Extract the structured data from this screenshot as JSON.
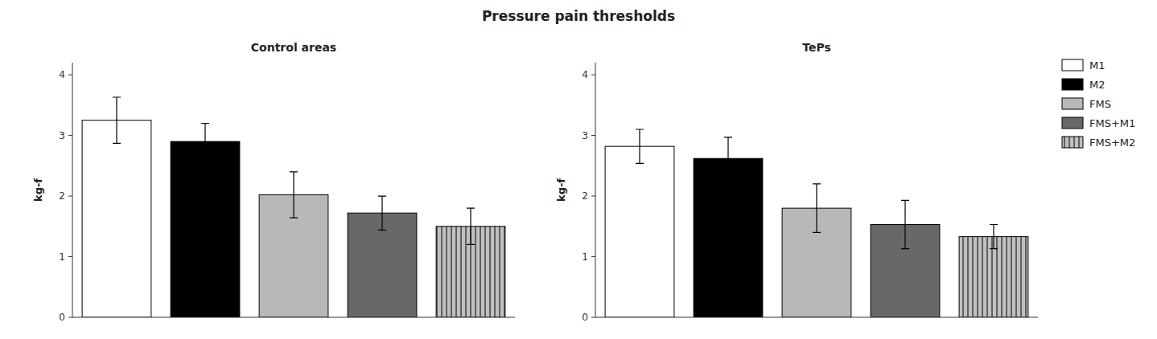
{
  "chart_data": [
    {
      "type": "bar",
      "title": "Pressure pain thresholds",
      "subtitle": "Control areas",
      "y_label": "kg-f",
      "categories": [
        "M1",
        "M2",
        "FMS",
        "FMS+M1",
        "FMS+M2"
      ],
      "values": [
        3.25,
        2.9,
        2.02,
        1.72,
        1.5
      ],
      "errors": [
        0.38,
        0.3,
        0.38,
        0.28,
        0.3
      ],
      "colors": [
        "#ffffff",
        "#000000",
        "#b8b8b8",
        "#686868",
        "#c0c0c0"
      ],
      "ylim": [
        0,
        4.2
      ],
      "yticks": [
        0,
        1,
        2,
        3,
        4
      ],
      "grid": false,
      "tick_labels": "y"
    },
    {
      "type": "bar",
      "subtitle": "TePs",
      "y_label": "kg-f",
      "categories": [
        "M1",
        "M2",
        "FMS",
        "FMS+M1",
        "FMS+M2"
      ],
      "values": [
        2.82,
        2.62,
        1.8,
        1.53,
        1.33
      ],
      "errors": [
        0.28,
        0.35,
        0.4,
        0.4,
        0.2
      ],
      "colors": [
        "#ffffff",
        "#000000",
        "#b8b8b8",
        "#686868",
        "#c0c0c0"
      ],
      "ylim": [
        0,
        4.2
      ],
      "yticks": [
        0,
        1,
        2,
        3,
        4
      ],
      "grid": false,
      "tick_labels": "y",
      "legend": "right"
    }
  ]
}
